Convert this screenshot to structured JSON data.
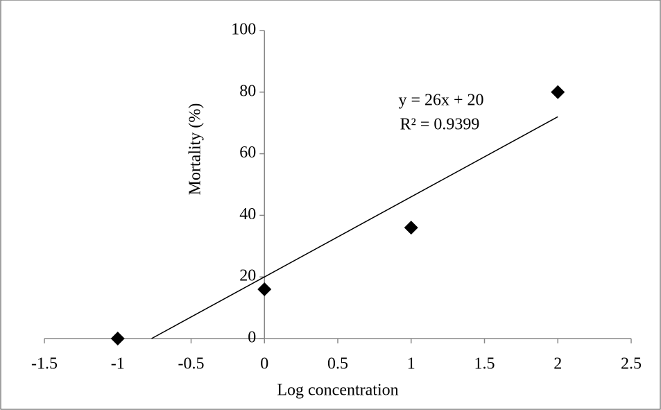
{
  "chart_data": {
    "type": "scatter",
    "x_label": "Log concentration",
    "y_label": "Mortality (%)",
    "x": [
      -1,
      0,
      1,
      2
    ],
    "values": [
      0,
      16,
      36,
      80
    ],
    "color": "#000000",
    "xlim": [
      -1.5,
      2.5
    ],
    "xticks": [
      -1.5,
      -1,
      -0.5,
      0,
      0.5,
      1,
      1.5,
      2,
      2.5
    ],
    "ylim": [
      0,
      100
    ],
    "yticks": [
      0,
      20,
      40,
      60,
      80,
      100
    ],
    "trendline": {
      "label": "y = 26x + 20",
      "r2_label": "R² = 0.9399",
      "slope": 26,
      "intercept": 20
    }
  }
}
